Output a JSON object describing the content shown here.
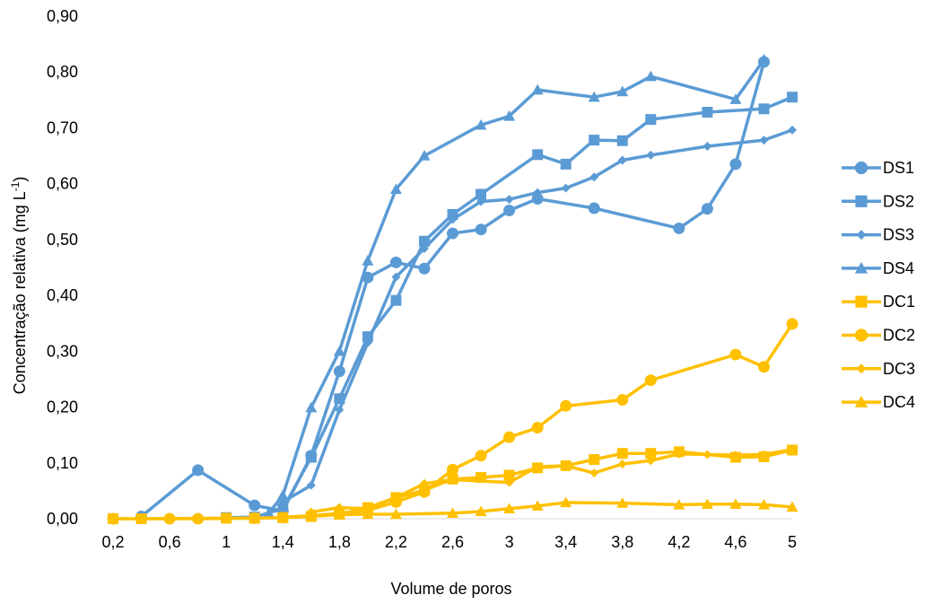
{
  "chart_data": {
    "type": "line",
    "xlabel": "Volume de poros",
    "ylabel": {
      "base": "Concentração relativa (mg L",
      "sup": "-1",
      "end": ")"
    },
    "xlim": [
      0.2,
      5
    ],
    "ylim": [
      0,
      0.9
    ],
    "x_ticks": [
      {
        "value": 0.2,
        "label": "0,2"
      },
      {
        "value": 0.6,
        "label": "0,6"
      },
      {
        "value": 1.0,
        "label": "1"
      },
      {
        "value": 1.4,
        "label": "1,4"
      },
      {
        "value": 1.8,
        "label": "1,8"
      },
      {
        "value": 2.2,
        "label": "2,2"
      },
      {
        "value": 2.6,
        "label": "2,6"
      },
      {
        "value": 3.0,
        "label": "3"
      },
      {
        "value": 3.4,
        "label": "3,4"
      },
      {
        "value": 3.8,
        "label": "3,8"
      },
      {
        "value": 4.2,
        "label": "4,2"
      },
      {
        "value": 4.6,
        "label": "4,6"
      },
      {
        "value": 5.0,
        "label": "5"
      }
    ],
    "y_ticks": [
      {
        "value": 0.0,
        "label": "0,00"
      },
      {
        "value": 0.1,
        "label": "0,10"
      },
      {
        "value": 0.2,
        "label": "0,20"
      },
      {
        "value": 0.3,
        "label": "0,30"
      },
      {
        "value": 0.4,
        "label": "0,40"
      },
      {
        "value": 0.5,
        "label": "0,50"
      },
      {
        "value": 0.6,
        "label": "0,60"
      },
      {
        "value": 0.7,
        "label": "0,70"
      },
      {
        "value": 0.8,
        "label": "0,80"
      },
      {
        "value": 0.9,
        "label": "0,90"
      }
    ],
    "grid": false,
    "legend_position": "right",
    "series": [
      {
        "name": "DS1",
        "color": "#5B9BD5",
        "marker": "circle",
        "x": [
          0.4,
          0.8,
          1.2,
          1.4,
          1.6,
          1.8,
          2.0,
          2.2,
          2.4,
          2.6,
          2.8,
          3.0,
          3.2,
          3.6,
          4.2,
          4.4,
          4.6,
          4.8
        ],
        "y": [
          0.004,
          0.087,
          0.024,
          0.014,
          0.113,
          0.264,
          0.432,
          0.459,
          0.448,
          0.511,
          0.518,
          0.552,
          0.573,
          0.556,
          0.52,
          0.555,
          0.635,
          0.818
        ]
      },
      {
        "name": "DS2",
        "color": "#5B9BD5",
        "marker": "square",
        "x": [
          1.0,
          1.2,
          1.4,
          1.6,
          1.8,
          2.0,
          2.2,
          2.4,
          2.6,
          2.8,
          3.2,
          3.4,
          3.6,
          3.8,
          4.0,
          4.4,
          4.8,
          5.0
        ],
        "y": [
          0.002,
          0.003,
          0.018,
          0.11,
          0.215,
          0.326,
          0.391,
          0.497,
          0.545,
          0.581,
          0.652,
          0.635,
          0.678,
          0.677,
          0.715,
          0.728,
          0.734,
          0.755
        ]
      },
      {
        "name": "DS3",
        "color": "#5B9BD5",
        "marker": "diamond",
        "x": [
          1.4,
          1.6,
          1.8,
          2.0,
          2.2,
          2.4,
          2.6,
          2.8,
          3.0,
          3.2,
          3.4,
          3.6,
          3.8,
          4.0,
          4.4,
          4.8,
          5.0
        ],
        "y": [
          0.03,
          0.06,
          0.195,
          0.315,
          0.433,
          0.484,
          0.536,
          0.568,
          0.572,
          0.584,
          0.592,
          0.612,
          0.642,
          0.651,
          0.667,
          0.678,
          0.696
        ]
      },
      {
        "name": "DS4",
        "color": "#5B9BD5",
        "marker": "triangle",
        "x": [
          1.3,
          1.4,
          1.6,
          1.8,
          2.0,
          2.2,
          2.4,
          2.8,
          3.0,
          3.2,
          3.6,
          3.8,
          4.0,
          4.6,
          4.8
        ],
        "y": [
          0.01,
          0.042,
          0.199,
          0.3,
          0.462,
          0.59,
          0.65,
          0.705,
          0.721,
          0.768,
          0.755,
          0.765,
          0.792,
          0.751,
          0.822
        ]
      },
      {
        "name": "DC1",
        "color": "#FFC000",
        "marker": "square",
        "x": [
          0.2,
          0.4,
          1.0,
          1.2,
          1.4,
          1.6,
          1.8,
          2.0,
          2.2,
          2.4,
          2.6,
          2.8,
          3.0,
          3.2,
          3.4,
          3.6,
          3.8,
          4.0,
          4.2,
          4.6,
          4.8,
          5.0
        ],
        "y": [
          0.0,
          0.0,
          0.001,
          0.001,
          0.002,
          0.004,
          0.008,
          0.02,
          0.038,
          0.051,
          0.071,
          0.074,
          0.078,
          0.091,
          0.095,
          0.106,
          0.117,
          0.117,
          0.12,
          0.11,
          0.111,
          0.123
        ]
      },
      {
        "name": "DC2",
        "color": "#FFC000",
        "marker": "circle",
        "x": [
          0.2,
          0.6,
          0.8,
          1.2,
          1.4,
          1.6,
          1.8,
          2.0,
          2.2,
          2.4,
          2.6,
          2.8,
          3.0,
          3.2,
          3.4,
          3.8,
          4.0,
          4.6,
          4.8,
          5.0
        ],
        "y": [
          0.0,
          0.0,
          0.0,
          0.001,
          0.002,
          0.005,
          0.01,
          0.015,
          0.03,
          0.048,
          0.088,
          0.113,
          0.146,
          0.163,
          0.202,
          0.213,
          0.248,
          0.294,
          0.272,
          0.349
        ]
      },
      {
        "name": "DC3",
        "color": "#FFC000",
        "marker": "diamond",
        "x": [
          1.6,
          1.8,
          2.0,
          2.2,
          2.4,
          2.6,
          3.0,
          3.2,
          3.4,
          3.6,
          3.8,
          4.0,
          4.2,
          4.4,
          4.6,
          4.8,
          5.0
        ],
        "y": [
          0.012,
          0.02,
          0.018,
          0.038,
          0.063,
          0.07,
          0.065,
          0.093,
          0.095,
          0.082,
          0.098,
          0.104,
          0.116,
          0.115,
          0.114,
          0.115,
          0.124
        ]
      },
      {
        "name": "DC4",
        "color": "#FFC000",
        "marker": "triangle",
        "x": [
          1.4,
          1.6,
          1.8,
          2.0,
          2.2,
          2.6,
          2.8,
          3.0,
          3.2,
          3.4,
          3.8,
          4.2,
          4.4,
          4.6,
          4.8,
          5.0
        ],
        "y": [
          0.003,
          0.005,
          0.007,
          0.008,
          0.008,
          0.01,
          0.013,
          0.018,
          0.023,
          0.029,
          0.028,
          0.025,
          0.026,
          0.026,
          0.025,
          0.021
        ]
      }
    ]
  }
}
